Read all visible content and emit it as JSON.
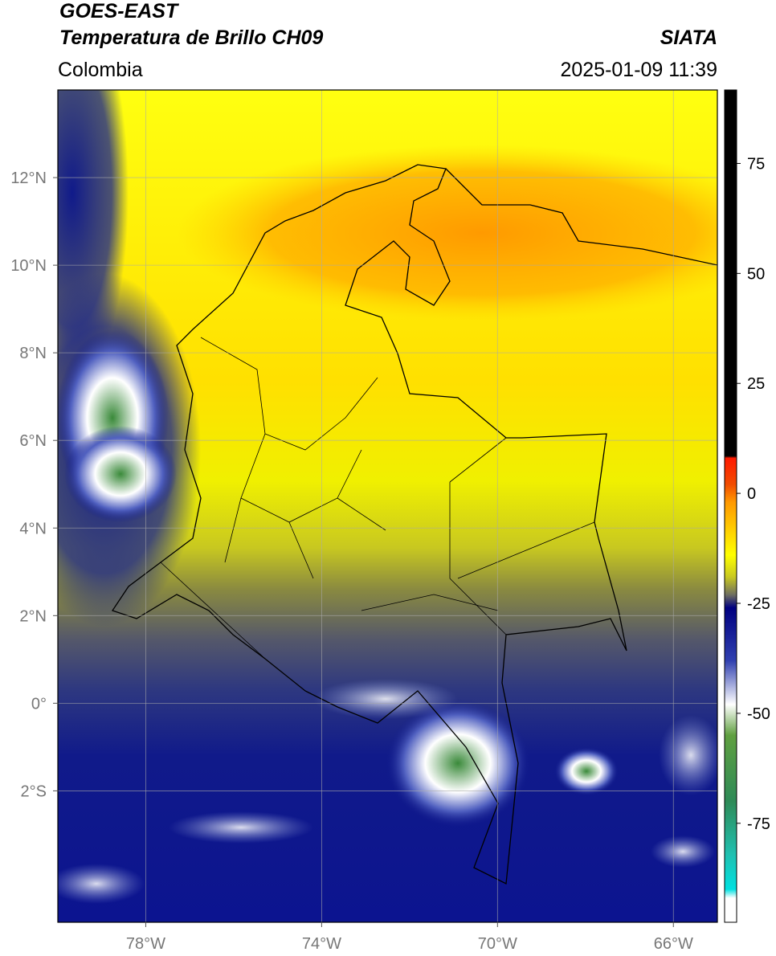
{
  "header": {
    "satellite": "GOES-EAST",
    "product": "Temperatura de Brillo CH09",
    "region": "Colombia",
    "source": "SIATA",
    "datetime": "2025-01-09 11:39"
  },
  "map": {
    "xlim": [
      -80,
      -65
    ],
    "ylim": [
      -5,
      14
    ],
    "xticks": [
      {
        "value": -78,
        "label": "78°W"
      },
      {
        "value": -74,
        "label": "74°W"
      },
      {
        "value": -70,
        "label": "70°W"
      },
      {
        "value": -66,
        "label": "66°W"
      }
    ],
    "yticks": [
      {
        "value": 12,
        "label": "12°N"
      },
      {
        "value": 10,
        "label": "10°N"
      },
      {
        "value": 8,
        "label": "8°N"
      },
      {
        "value": 6,
        "label": "6°N"
      },
      {
        "value": 4,
        "label": "4°N"
      },
      {
        "value": 2,
        "label": "2°N"
      },
      {
        "value": 0,
        "label": "0°"
      },
      {
        "value": -2,
        "label": "2°S"
      }
    ],
    "grid": true
  },
  "colorbar": {
    "lim": [
      -97.5,
      91.7
    ],
    "ticks": [
      75,
      50,
      25,
      0,
      -25,
      -50,
      -75
    ],
    "stops": [
      [
        91.7,
        "#000000"
      ],
      [
        8.5,
        "#000000"
      ],
      [
        8,
        "#ff1a00"
      ],
      [
        2,
        "#f24d00"
      ],
      [
        -2,
        "#ff9900"
      ],
      [
        -14,
        "#ffff00"
      ],
      [
        -19,
        "#c8c820"
      ],
      [
        -23,
        "#707060"
      ],
      [
        -26,
        "#000080"
      ],
      [
        -38,
        "#3040b0"
      ],
      [
        -48,
        "#ffffff"
      ],
      [
        -55,
        "#60a040"
      ],
      [
        -70,
        "#2e8b57"
      ],
      [
        -82,
        "#20c0b0"
      ],
      [
        -90,
        "#00e0e0"
      ],
      [
        -92,
        "#ffffff"
      ],
      [
        -97.5,
        "#ffffff"
      ]
    ]
  }
}
